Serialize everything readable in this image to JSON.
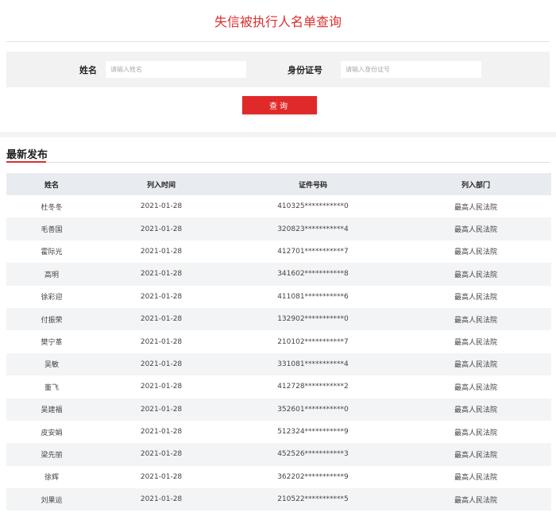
{
  "title": "失信被执行人名单查询",
  "search": {
    "name_label": "姓名",
    "name_placeholder": "请输入姓名",
    "id_label": "身份证号",
    "id_placeholder": "请输入身份证号",
    "button": "查询"
  },
  "section_title": "最新发布",
  "colors": {
    "accent": "#d9302f",
    "button": "#e02a2a"
  },
  "table": {
    "headers": [
      "姓名",
      "列入时间",
      "证件号码",
      "列入部门"
    ],
    "rows": [
      [
        "杜冬冬",
        "2021-01-28",
        "410325***********0",
        "最高人民法院"
      ],
      [
        "毛善国",
        "2021-01-28",
        "320823***********4",
        "最高人民法院"
      ],
      [
        "霍际光",
        "2021-01-28",
        "412701***********7",
        "最高人民法院"
      ],
      [
        "高明",
        "2021-01-28",
        "341602***********8",
        "最高人民法院"
      ],
      [
        "徐彩迎",
        "2021-01-28",
        "411081***********6",
        "最高人民法院"
      ],
      [
        "付振荣",
        "2021-01-28",
        "132902***********0",
        "最高人民法院"
      ],
      [
        "樊宁革",
        "2021-01-28",
        "210102***********7",
        "最高人民法院"
      ],
      [
        "吴敏",
        "2021-01-28",
        "331081***********4",
        "最高人民法院"
      ],
      [
        "董飞",
        "2021-01-28",
        "412728***********2",
        "最高人民法院"
      ],
      [
        "吴建福",
        "2021-01-28",
        "352601***********0",
        "最高人民法院"
      ],
      [
        "皮安娟",
        "2021-01-28",
        "512324***********9",
        "最高人民法院"
      ],
      [
        "梁先丽",
        "2021-01-28",
        "452526***********3",
        "最高人民法院"
      ],
      [
        "徐辉",
        "2021-01-28",
        "362202***********9",
        "最高人民法院"
      ],
      [
        "刘果运",
        "2021-01-28",
        "210522***********5",
        "最高人民法院"
      ]
    ]
  }
}
